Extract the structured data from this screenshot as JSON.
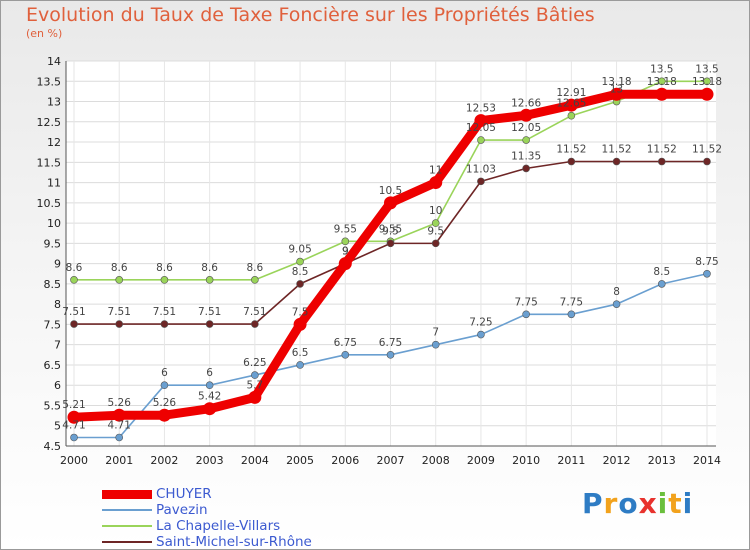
{
  "header": {
    "title": "Evolution du Taux de Taxe Foncière sur les Propriétés Bâties",
    "subtitle": "(en %)"
  },
  "logo": {
    "letters": [
      "P",
      "r",
      "o",
      "x",
      "i",
      "t",
      "i"
    ],
    "colors": [
      "#2e7cc4",
      "#f2a21c",
      "#2e7cc4",
      "#e8322d",
      "#6abf3c",
      "#f2a21c",
      "#2e7cc4"
    ]
  },
  "chart_data": {
    "type": "line",
    "title": "Evolution du Taux de Taxe Foncière sur les Propriétés Bâties",
    "ylabel": "(en %)",
    "xlabel": "",
    "ylim": [
      4.5,
      14
    ],
    "yticks": [
      "4.5",
      "5",
      "5.5",
      "6",
      "6.5",
      "7",
      "7.5",
      "8",
      "8.5",
      "9",
      "9.5",
      "10",
      "10.5",
      "11",
      "11.5",
      "12",
      "12.5",
      "13",
      "13.5",
      "14"
    ],
    "x": [
      "2000",
      "2001",
      "2002",
      "2003",
      "2004",
      "2005",
      "2006",
      "2007",
      "2008",
      "2009",
      "2010",
      "2011",
      "2012",
      "2013",
      "2014"
    ],
    "grid": true,
    "legend_position": "bottom-left",
    "series": [
      {
        "name": "CHUYER",
        "color": "#ee0000",
        "thick": true,
        "values": [
          5.21,
          5.26,
          5.26,
          5.42,
          5.7,
          7.5,
          9,
          10.5,
          11,
          12.53,
          12.66,
          12.91,
          13.18,
          13.18,
          13.18
        ],
        "labels": [
          "5.21",
          "5.26",
          "5.26",
          "5.42",
          "5.7",
          "7.5",
          "9",
          "10.5",
          "11",
          "12.53",
          "12.66",
          "12.91",
          "13.18",
          "13.18",
          "13.18"
        ]
      },
      {
        "name": "Pavezin",
        "color": "#6a9fd0",
        "values": [
          4.71,
          4.71,
          6,
          6,
          6.25,
          6.5,
          6.75,
          6.75,
          7,
          7.25,
          7.75,
          7.75,
          8,
          8.5,
          8.75
        ],
        "labels": [
          "4.71",
          "4.71",
          "6",
          "6",
          "6.25",
          "6.5",
          "6.75",
          "6.75",
          "7",
          "7.25",
          "7.75",
          "7.75",
          "8",
          "8.5",
          "8.75"
        ]
      },
      {
        "name": "La Chapelle-Villars",
        "color": "#9ad45a",
        "values": [
          8.6,
          8.6,
          8.6,
          8.6,
          8.6,
          9.05,
          9.55,
          9.55,
          10,
          12.05,
          12.05,
          12.65,
          13,
          13.5,
          13.5
        ],
        "labels": [
          "8.6",
          "8.6",
          "8.6",
          "8.6",
          "8.6",
          "9.05",
          "9.55",
          "9.55",
          "10",
          "12.05",
          "12.05",
          "12.65",
          "13",
          "13.5",
          "13.5"
        ]
      },
      {
        "name": "Saint-Michel-sur-Rhône",
        "color": "#6e2626",
        "values": [
          7.51,
          7.51,
          7.51,
          7.51,
          7.51,
          8.5,
          9,
          9.5,
          9.5,
          11.03,
          11.35,
          11.52,
          11.52,
          11.52,
          11.52
        ],
        "labels": [
          "7.51",
          "7.51",
          "7.51",
          "7.51",
          "7.51",
          "8.5",
          "9",
          "9.5",
          "9.5",
          "11.03",
          "11.35",
          "11.52",
          "11.52",
          "11.52",
          "11.52"
        ]
      }
    ]
  }
}
